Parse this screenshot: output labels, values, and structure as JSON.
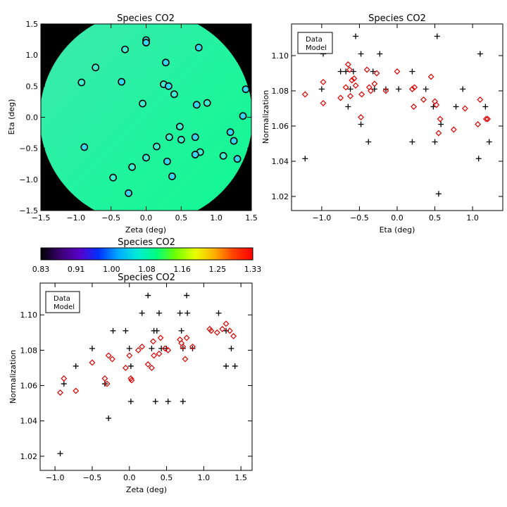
{
  "chart_data": [
    {
      "id": "map",
      "type": "heatmap",
      "title": "Species CO2",
      "xlabel": "Zeta (deg)",
      "ylabel": "Eta (deg)",
      "xlim": [
        -1.5,
        1.5
      ],
      "ylim": [
        -1.5,
        1.5
      ],
      "xticks": [
        -1.5,
        -1.0,
        -0.5,
        0.0,
        0.5,
        1.0,
        1.5
      ],
      "yticks": [
        -1.5,
        -1.0,
        -0.5,
        0.0,
        0.5,
        1.0,
        1.5
      ],
      "xtick_labels": [
        "−1.5",
        "−1.0",
        "−0.5",
        "0.0",
        "0.5",
        "1.0",
        "1.5"
      ],
      "ytick_labels": [
        "−1.5",
        "−1.0",
        "−0.5",
        "0.0",
        "0.5",
        "1.0",
        "1.5"
      ],
      "background_color": "#000000",
      "field_colors": [
        "#3fe7b0",
        "#23f3a0",
        "#10f890"
      ],
      "marker_colors": [
        "#40f0d0",
        "#35d8f0"
      ],
      "points": [
        {
          "x": 0.0,
          "y": 1.24
        },
        {
          "x": 0.0,
          "y": 1.2
        },
        {
          "x": -0.3,
          "y": 1.09
        },
        {
          "x": 0.75,
          "y": 1.12
        },
        {
          "x": -0.72,
          "y": 0.8
        },
        {
          "x": 0.28,
          "y": 0.88
        },
        {
          "x": -0.92,
          "y": 0.56
        },
        {
          "x": -0.35,
          "y": 0.57
        },
        {
          "x": 0.25,
          "y": 0.53
        },
        {
          "x": 0.32,
          "y": 0.5
        },
        {
          "x": 0.4,
          "y": 0.37
        },
        {
          "x": 1.42,
          "y": 0.45
        },
        {
          "x": -0.05,
          "y": 0.22
        },
        {
          "x": 0.72,
          "y": 0.2
        },
        {
          "x": 0.87,
          "y": 0.23
        },
        {
          "x": 1.38,
          "y": 0.02
        },
        {
          "x": 0.48,
          "y": -0.15
        },
        {
          "x": 1.2,
          "y": -0.24
        },
        {
          "x": 0.33,
          "y": -0.32
        },
        {
          "x": 0.7,
          "y": -0.32
        },
        {
          "x": 0.5,
          "y": -0.36
        },
        {
          "x": 1.25,
          "y": -0.38
        },
        {
          "x": 0.15,
          "y": -0.47
        },
        {
          "x": -0.88,
          "y": -0.48
        },
        {
          "x": 0.77,
          "y": -0.56
        },
        {
          "x": 0.7,
          "y": -0.6
        },
        {
          "x": 1.1,
          "y": -0.62
        },
        {
          "x": 1.3,
          "y": -0.67
        },
        {
          "x": 0.0,
          "y": -0.65
        },
        {
          "x": 0.3,
          "y": -0.71
        },
        {
          "x": -0.2,
          "y": -0.8
        },
        {
          "x": 0.37,
          "y": -0.95
        },
        {
          "x": -0.47,
          "y": -0.97
        },
        {
          "x": -0.25,
          "y": -1.22
        }
      ]
    },
    {
      "id": "colorbar",
      "type": "colorbar",
      "title": "Species CO2",
      "range": [
        0.83,
        1.33
      ],
      "tick_labels": [
        "0.83",
        "0.91",
        "1.00",
        "1.08",
        "1.16",
        "1.25",
        "1.33"
      ],
      "colors": [
        "#000000",
        "#3a0070",
        "#5a00c8",
        "#0030ff",
        "#00a8ff",
        "#00ecd8",
        "#00ff80",
        "#70ff00",
        "#e8ff00",
        "#ffb000",
        "#ff4000",
        "#ff0000"
      ]
    },
    {
      "id": "eta",
      "type": "scatter",
      "title": "Species CO2",
      "xlabel": "Eta (deg)",
      "ylabel": "Normalization",
      "xlim": [
        -1.4,
        1.4
      ],
      "ylim": [
        1.012,
        1.118
      ],
      "xticks": [
        -1.0,
        -0.5,
        0.0,
        0.5,
        1.0
      ],
      "xtick_labels": [
        "−1.0",
        "−0.5",
        "0.0",
        "0.5",
        "1.0"
      ],
      "yticks": [
        1.02,
        1.04,
        1.06,
        1.08,
        1.1
      ],
      "ytick_labels": [
        "1.02",
        "1.04",
        "1.06",
        "1.08",
        "1.10"
      ],
      "legend": {
        "position": "top-left",
        "labels": [
          "Data",
          "Model"
        ],
        "colors": [
          "#000000",
          "#e00000"
        ]
      },
      "series": [
        {
          "name": "Data",
          "marker": "plus",
          "color": "#000000",
          "points": [
            {
              "x": -1.22,
              "y": 1.0415
            },
            {
              "x": -1.0,
              "y": 1.081
            },
            {
              "x": -0.98,
              "y": 1.101
            },
            {
              "x": -0.75,
              "y": 1.091
            },
            {
              "x": -0.68,
              "y": 1.091
            },
            {
              "x": -0.65,
              "y": 1.071
            },
            {
              "x": -0.62,
              "y": 1.081
            },
            {
              "x": -0.58,
              "y": 1.091
            },
            {
              "x": -0.55,
              "y": 1.111
            },
            {
              "x": -0.48,
              "y": 1.101
            },
            {
              "x": -0.48,
              "y": 1.061
            },
            {
              "x": -0.38,
              "y": 1.051
            },
            {
              "x": -0.32,
              "y": 1.091
            },
            {
              "x": -0.3,
              "y": 1.081
            },
            {
              "x": -0.23,
              "y": 1.101
            },
            {
              "x": -0.15,
              "y": 1.081
            },
            {
              "x": 0.02,
              "y": 1.081
            },
            {
              "x": 0.2,
              "y": 1.091
            },
            {
              "x": 0.2,
              "y": 1.051
            },
            {
              "x": 0.38,
              "y": 1.081
            },
            {
              "x": 0.48,
              "y": 1.071
            },
            {
              "x": 0.5,
              "y": 1.051
            },
            {
              "x": 0.53,
              "y": 1.111
            },
            {
              "x": 0.55,
              "y": 1.0215
            },
            {
              "x": 0.58,
              "y": 1.061
            },
            {
              "x": 0.78,
              "y": 1.071
            },
            {
              "x": 0.87,
              "y": 1.081
            },
            {
              "x": 1.08,
              "y": 1.0415
            },
            {
              "x": 1.1,
              "y": 1.101
            },
            {
              "x": 1.17,
              "y": 1.071
            },
            {
              "x": 1.22,
              "y": 1.051
            }
          ]
        },
        {
          "name": "Model",
          "marker": "diamond",
          "color": "#e00000",
          "points": [
            {
              "x": -1.22,
              "y": 1.078
            },
            {
              "x": -0.98,
              "y": 1.085
            },
            {
              "x": -0.98,
              "y": 1.073
            },
            {
              "x": -0.75,
              "y": 1.076
            },
            {
              "x": -0.68,
              "y": 1.082
            },
            {
              "x": -0.65,
              "y": 1.095
            },
            {
              "x": -0.63,
              "y": 1.092
            },
            {
              "x": -0.62,
              "y": 1.077
            },
            {
              "x": -0.6,
              "y": 1.086
            },
            {
              "x": -0.57,
              "y": 1.087
            },
            {
              "x": -0.55,
              "y": 1.083
            },
            {
              "x": -0.48,
              "y": 1.065
            },
            {
              "x": -0.47,
              "y": 1.078
            },
            {
              "x": -0.4,
              "y": 1.092
            },
            {
              "x": -0.37,
              "y": 1.082
            },
            {
              "x": -0.35,
              "y": 1.08
            },
            {
              "x": -0.3,
              "y": 1.084
            },
            {
              "x": -0.27,
              "y": 1.09
            },
            {
              "x": -0.15,
              "y": 1.08
            },
            {
              "x": 0.0,
              "y": 1.091
            },
            {
              "x": 0.2,
              "y": 1.081
            },
            {
              "x": 0.23,
              "y": 1.082
            },
            {
              "x": 0.22,
              "y": 1.071
            },
            {
              "x": 0.35,
              "y": 1.075
            },
            {
              "x": 0.45,
              "y": 1.088
            },
            {
              "x": 0.5,
              "y": 1.074
            },
            {
              "x": 0.52,
              "y": 1.072
            },
            {
              "x": 0.55,
              "y": 1.056
            },
            {
              "x": 0.57,
              "y": 1.064
            },
            {
              "x": 0.75,
              "y": 1.058
            },
            {
              "x": 0.9,
              "y": 1.07
            },
            {
              "x": 1.07,
              "y": 1.061
            },
            {
              "x": 1.1,
              "y": 1.075
            },
            {
              "x": 1.18,
              "y": 1.064
            },
            {
              "x": 1.2,
              "y": 1.064
            }
          ]
        }
      ]
    },
    {
      "id": "zeta",
      "type": "scatter",
      "title": "Species CO2",
      "xlabel": "Zeta (deg)",
      "ylabel": "Normalization",
      "xlim": [
        -1.2,
        1.65
      ],
      "ylim": [
        1.012,
        1.118
      ],
      "xticks": [
        -1.0,
        -0.5,
        0.0,
        0.5,
        1.0,
        1.5
      ],
      "xtick_labels": [
        "−1.0",
        "−0.5",
        "0.0",
        "0.5",
        "1.0",
        "1.5"
      ],
      "yticks": [
        1.02,
        1.04,
        1.06,
        1.08,
        1.1
      ],
      "ytick_labels": [
        "1.02",
        "1.04",
        "1.06",
        "1.08",
        "1.10"
      ],
      "legend": {
        "position": "top-left",
        "labels": [
          "Data",
          "Model"
        ],
        "colors": [
          "#000000",
          "#e00000"
        ]
      },
      "series": [
        {
          "name": "Data",
          "marker": "plus",
          "color": "#000000",
          "points": [
            {
              "x": -0.93,
              "y": 1.0215
            },
            {
              "x": -0.88,
              "y": 1.061
            },
            {
              "x": -0.72,
              "y": 1.071
            },
            {
              "x": -0.5,
              "y": 1.081
            },
            {
              "x": -0.33,
              "y": 1.061
            },
            {
              "x": -0.28,
              "y": 1.0415
            },
            {
              "x": -0.22,
              "y": 1.091
            },
            {
              "x": -0.05,
              "y": 1.091
            },
            {
              "x": 0.0,
              "y": 1.081
            },
            {
              "x": 0.02,
              "y": 1.071
            },
            {
              "x": 0.02,
              "y": 1.051
            },
            {
              "x": 0.17,
              "y": 1.101
            },
            {
              "x": 0.25,
              "y": 1.111
            },
            {
              "x": 0.3,
              "y": 1.081
            },
            {
              "x": 0.33,
              "y": 1.091
            },
            {
              "x": 0.37,
              "y": 1.091
            },
            {
              "x": 0.35,
              "y": 1.051
            },
            {
              "x": 0.4,
              "y": 1.101
            },
            {
              "x": 0.43,
              "y": 1.081
            },
            {
              "x": 0.5,
              "y": 1.081
            },
            {
              "x": 0.52,
              "y": 1.051
            },
            {
              "x": 0.68,
              "y": 1.101
            },
            {
              "x": 0.7,
              "y": 1.091
            },
            {
              "x": 0.72,
              "y": 1.081
            },
            {
              "x": 0.72,
              "y": 1.051
            },
            {
              "x": 0.77,
              "y": 1.111
            },
            {
              "x": 0.78,
              "y": 1.101
            },
            {
              "x": 0.85,
              "y": 1.081
            },
            {
              "x": 1.2,
              "y": 1.101
            },
            {
              "x": 1.3,
              "y": 1.091
            },
            {
              "x": 1.3,
              "y": 1.071
            },
            {
              "x": 1.37,
              "y": 1.081
            },
            {
              "x": 1.42,
              "y": 1.071
            }
          ]
        },
        {
          "name": "Model",
          "marker": "diamond",
          "color": "#e00000",
          "points": [
            {
              "x": -0.93,
              "y": 1.056
            },
            {
              "x": -0.88,
              "y": 1.064
            },
            {
              "x": -0.72,
              "y": 1.057
            },
            {
              "x": -0.5,
              "y": 1.073
            },
            {
              "x": -0.33,
              "y": 1.064
            },
            {
              "x": -0.3,
              "y": 1.061
            },
            {
              "x": -0.28,
              "y": 1.077
            },
            {
              "x": -0.23,
              "y": 1.075
            },
            {
              "x": -0.05,
              "y": 1.07
            },
            {
              "x": 0.0,
              "y": 1.077
            },
            {
              "x": 0.02,
              "y": 1.064
            },
            {
              "x": 0.03,
              "y": 1.063
            },
            {
              "x": 0.12,
              "y": 1.08
            },
            {
              "x": 0.17,
              "y": 1.082
            },
            {
              "x": 0.25,
              "y": 1.072
            },
            {
              "x": 0.3,
              "y": 1.07
            },
            {
              "x": 0.32,
              "y": 1.085
            },
            {
              "x": 0.33,
              "y": 1.077
            },
            {
              "x": 0.4,
              "y": 1.078
            },
            {
              "x": 0.42,
              "y": 1.087
            },
            {
              "x": 0.48,
              "y": 1.081
            },
            {
              "x": 0.52,
              "y": 1.08
            },
            {
              "x": 0.68,
              "y": 1.086
            },
            {
              "x": 0.7,
              "y": 1.084
            },
            {
              "x": 0.72,
              "y": 1.082
            },
            {
              "x": 0.75,
              "y": 1.075
            },
            {
              "x": 0.77,
              "y": 1.087
            },
            {
              "x": 0.85,
              "y": 1.082
            },
            {
              "x": 1.08,
              "y": 1.092
            },
            {
              "x": 1.1,
              "y": 1.091
            },
            {
              "x": 1.18,
              "y": 1.09
            },
            {
              "x": 1.25,
              "y": 1.092
            },
            {
              "x": 1.3,
              "y": 1.095
            },
            {
              "x": 1.35,
              "y": 1.091
            },
            {
              "x": 1.4,
              "y": 1.088
            }
          ]
        }
      ]
    }
  ]
}
